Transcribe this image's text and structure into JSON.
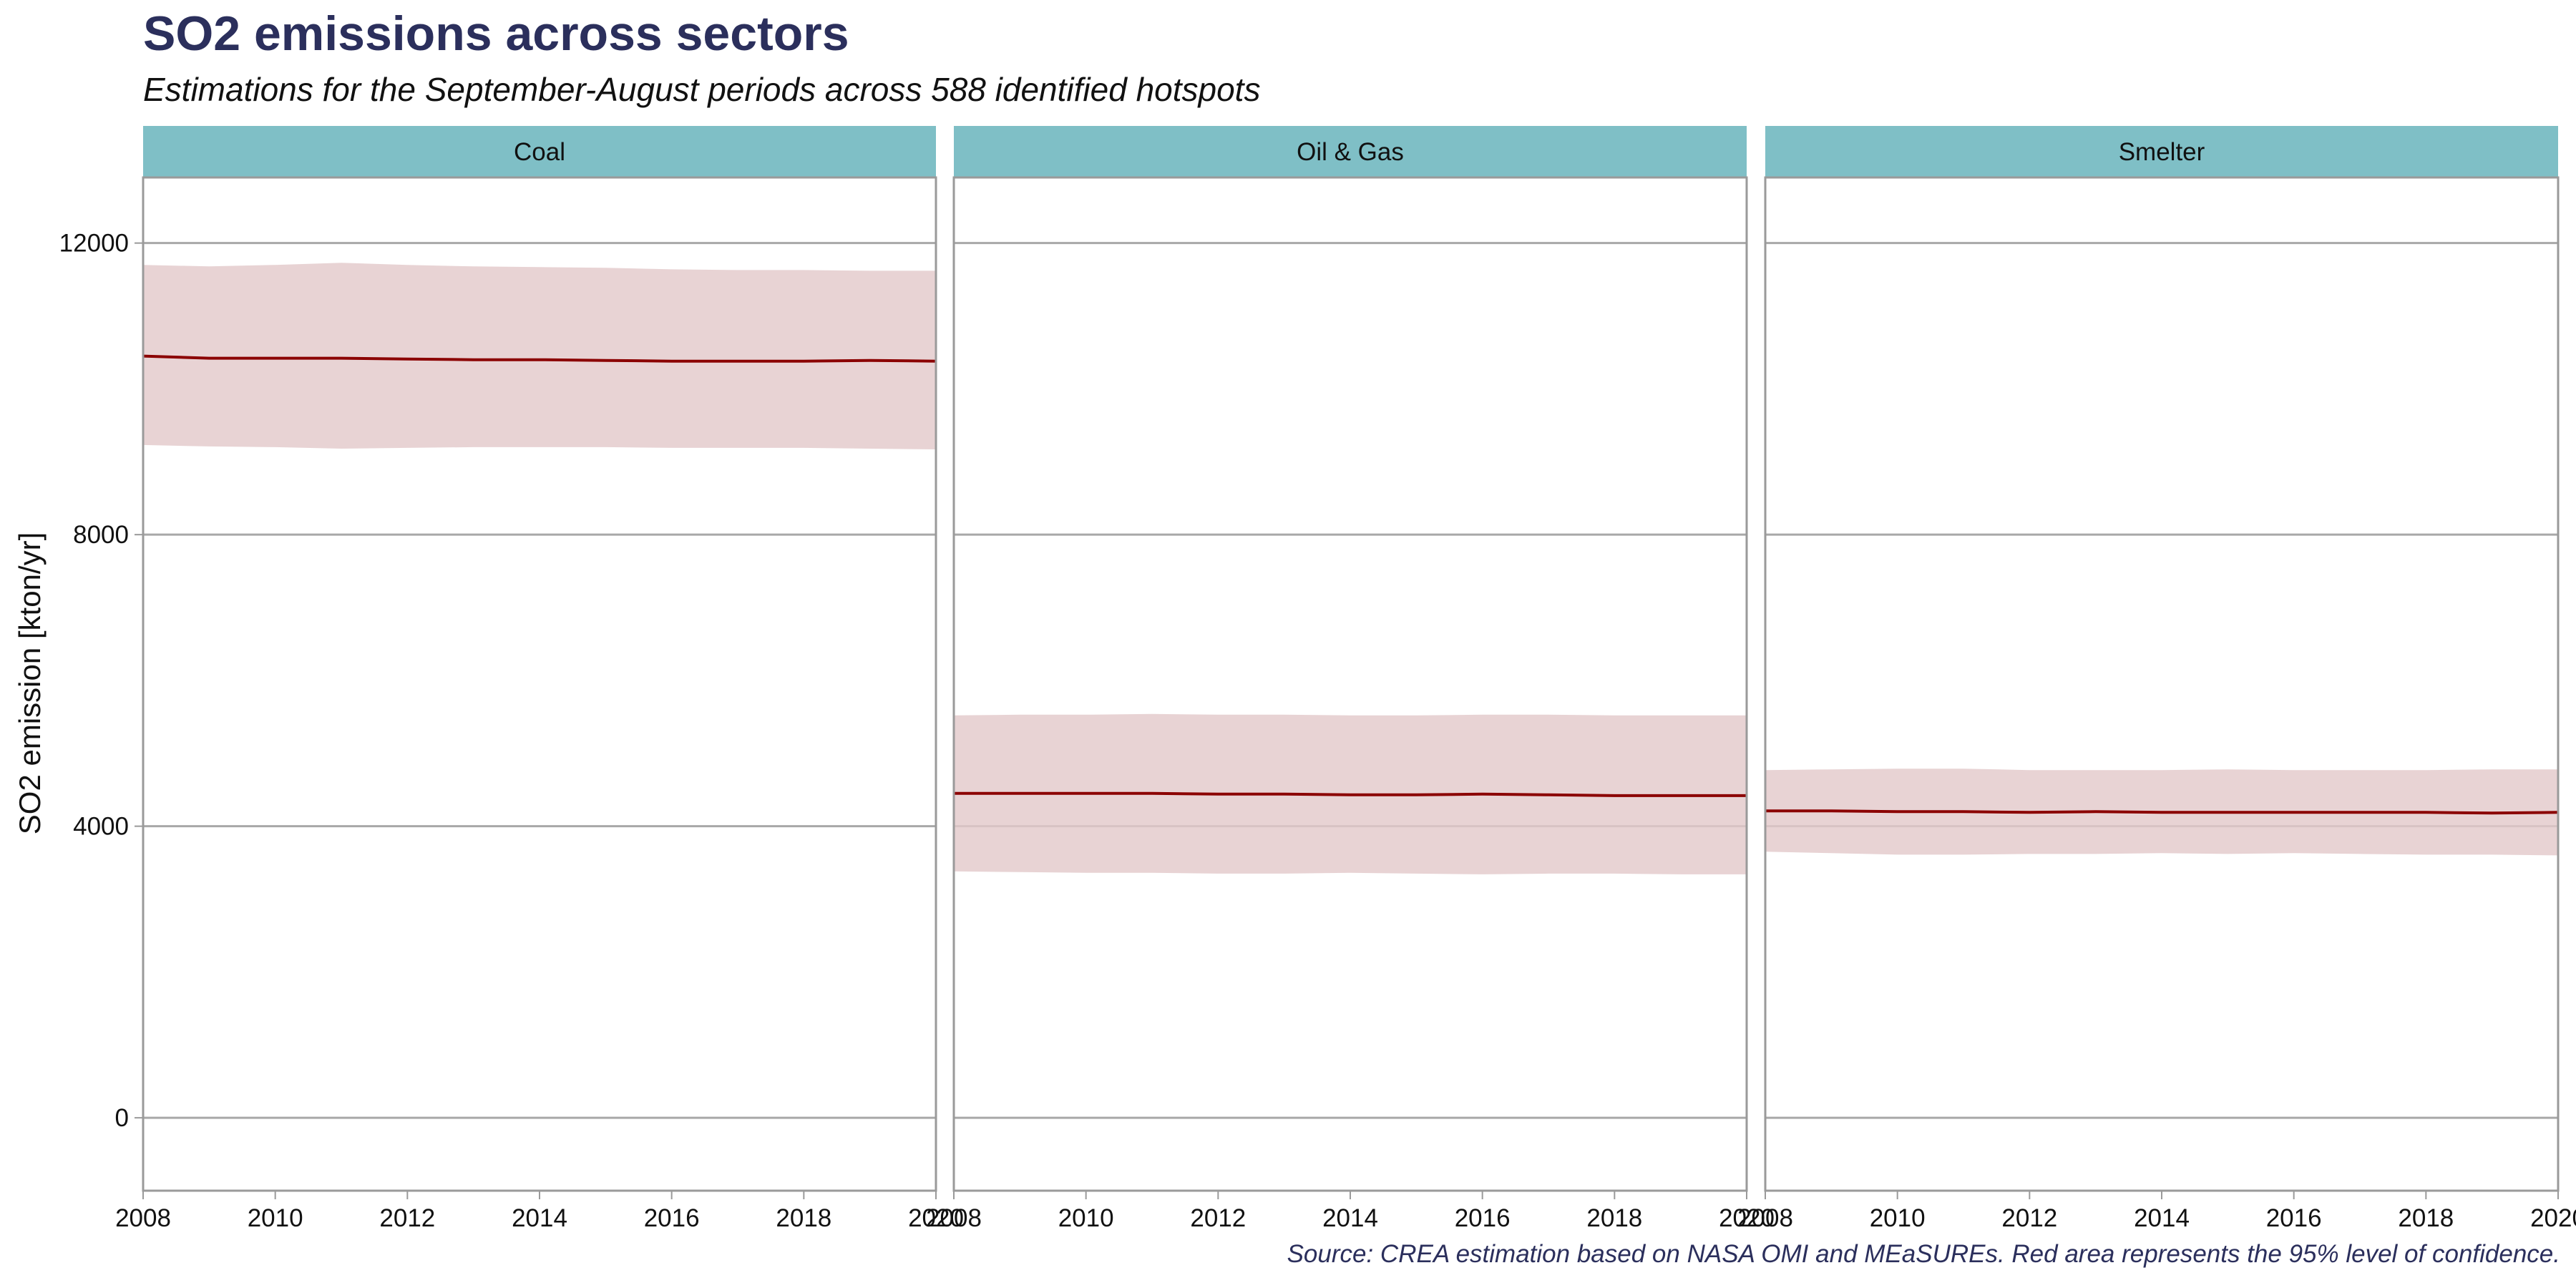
{
  "chart_data": {
    "type": "line",
    "title": "SO2 emissions across sectors",
    "subtitle": "Estimations for the September-August periods across 588 identified hotspots",
    "caption": "Source: CREA estimation based on NASA OMI and MEaSUREs. Red area represents the 95% level of confidence.",
    "ylabel": "SO2 emission [kton/yr]",
    "xlabel": "",
    "xlim": [
      2008,
      2020
    ],
    "ylim": [
      -1000,
      12900
    ],
    "x_ticks": [
      "2008",
      "2010",
      "2012",
      "2014",
      "2016",
      "2018",
      "2020"
    ],
    "y_ticks": [
      "0",
      "4000",
      "8000",
      "12000"
    ],
    "grid": true,
    "colors": {
      "line": "#8b0000",
      "ribbon": "#e3c9cb",
      "strip": "#7fbfc6",
      "frame": "#9a9a9a",
      "grid": "#a8a8a8",
      "title": "#2b2f5c"
    },
    "panels": [
      {
        "name": "Coal",
        "x": [
          2008,
          2009,
          2010,
          2011,
          2012,
          2013,
          2014,
          2015,
          2016,
          2017,
          2018,
          2019,
          2020
        ],
        "y": [
          10450,
          10420,
          10420,
          10420,
          10410,
          10400,
          10400,
          10390,
          10380,
          10380,
          10380,
          10390,
          10380
        ],
        "lower": [
          9230,
          9210,
          9200,
          9180,
          9190,
          9200,
          9200,
          9200,
          9190,
          9190,
          9190,
          9180,
          9170
        ],
        "upper": [
          11700,
          11680,
          11700,
          11730,
          11700,
          11680,
          11670,
          11660,
          11640,
          11630,
          11630,
          11620,
          11620
        ]
      },
      {
        "name": "Oil & Gas",
        "x": [
          2008,
          2009,
          2010,
          2011,
          2012,
          2013,
          2014,
          2015,
          2016,
          2017,
          2018,
          2019,
          2020
        ],
        "y": [
          4450,
          4450,
          4450,
          4450,
          4440,
          4440,
          4430,
          4430,
          4440,
          4430,
          4420,
          4420,
          4420
        ],
        "lower": [
          3380,
          3370,
          3360,
          3360,
          3350,
          3350,
          3360,
          3350,
          3340,
          3350,
          3350,
          3340,
          3340
        ],
        "upper": [
          5520,
          5530,
          5530,
          5540,
          5530,
          5530,
          5520,
          5520,
          5530,
          5530,
          5520,
          5520,
          5520
        ]
      },
      {
        "name": "Smelter",
        "x": [
          2008,
          2009,
          2010,
          2011,
          2012,
          2013,
          2014,
          2015,
          2016,
          2017,
          2018,
          2019,
          2020
        ],
        "y": [
          4210,
          4210,
          4200,
          4200,
          4190,
          4200,
          4190,
          4190,
          4190,
          4190,
          4190,
          4180,
          4190
        ],
        "lower": [
          3650,
          3630,
          3610,
          3610,
          3620,
          3620,
          3630,
          3620,
          3630,
          3620,
          3610,
          3610,
          3600
        ],
        "upper": [
          4770,
          4780,
          4790,
          4790,
          4770,
          4770,
          4770,
          4780,
          4770,
          4770,
          4770,
          4780,
          4780
        ]
      }
    ]
  }
}
